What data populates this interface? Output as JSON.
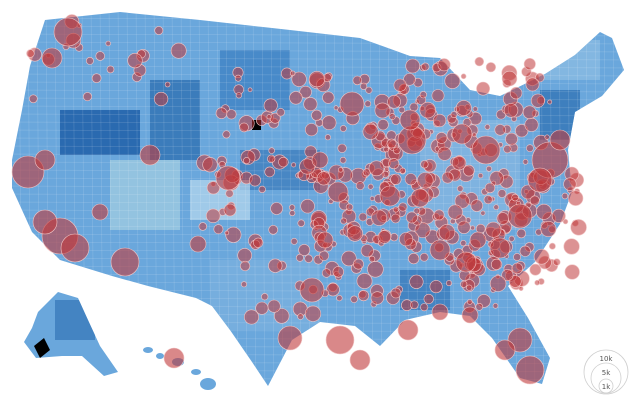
{
  "map": {
    "colors": {
      "background": "#ffffff",
      "county_light": "#9ecae1",
      "county_mid": "#5a9bd4",
      "county_dark": "#2c6db0",
      "county_darkest": "#0d4a93",
      "bubble_fill": "#c0393b",
      "bubble_stroke": "#f2c6c6",
      "nodata": "#000000"
    },
    "legend": {
      "labels": [
        "10k",
        "5k",
        "1k"
      ],
      "values": [
        10000,
        5000,
        1000
      ]
    }
  }
}
